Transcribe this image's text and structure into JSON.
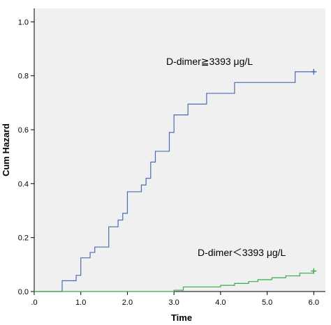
{
  "chart_data": {
    "type": "line",
    "xlabel": "Time",
    "ylabel": "Cum Hazard",
    "xlim": [
      0,
      6.25
    ],
    "ylim": [
      0,
      1.05
    ],
    "xticks": [
      0,
      1,
      2,
      3,
      4,
      5,
      6
    ],
    "xtick_labels": [
      ".0",
      "1.0",
      "2.0",
      "3.0",
      "4.0",
      "5.0",
      "6.0"
    ],
    "yticks": [
      0,
      0.2,
      0.4,
      0.6,
      0.8,
      1.0
    ],
    "ytick_labels": [
      "0.0",
      "0.2",
      "0.4",
      "0.6",
      "0.8",
      "1.0"
    ],
    "grid": false,
    "background": "#f0f0f0",
    "series": [
      {
        "name": "D-dimer≧3393 μg/L",
        "color": "#4a6bb5",
        "step": true,
        "censor_marker": "+",
        "x": [
          0,
          0.6,
          0.9,
          1.0,
          1.2,
          1.3,
          1.6,
          1.8,
          1.9,
          2.0,
          2.3,
          2.4,
          2.5,
          2.6,
          2.9,
          3.0,
          3.3,
          3.7,
          4.3,
          5.6,
          6.0
        ],
        "y": [
          0,
          0.04,
          0.06,
          0.125,
          0.145,
          0.165,
          0.24,
          0.265,
          0.29,
          0.37,
          0.395,
          0.42,
          0.48,
          0.52,
          0.59,
          0.655,
          0.695,
          0.735,
          0.775,
          0.815,
          0.815
        ]
      },
      {
        "name": "D-dimer＜3393 μg/L",
        "color": "#3aaa4a",
        "step": true,
        "censor_marker": "+",
        "x": [
          0,
          3.0,
          3.2,
          4.0,
          4.3,
          4.6,
          4.8,
          5.1,
          5.4,
          5.7,
          6.0
        ],
        "y": [
          0,
          0.005,
          0.017,
          0.023,
          0.03,
          0.037,
          0.044,
          0.051,
          0.058,
          0.068,
          0.076
        ]
      }
    ]
  }
}
